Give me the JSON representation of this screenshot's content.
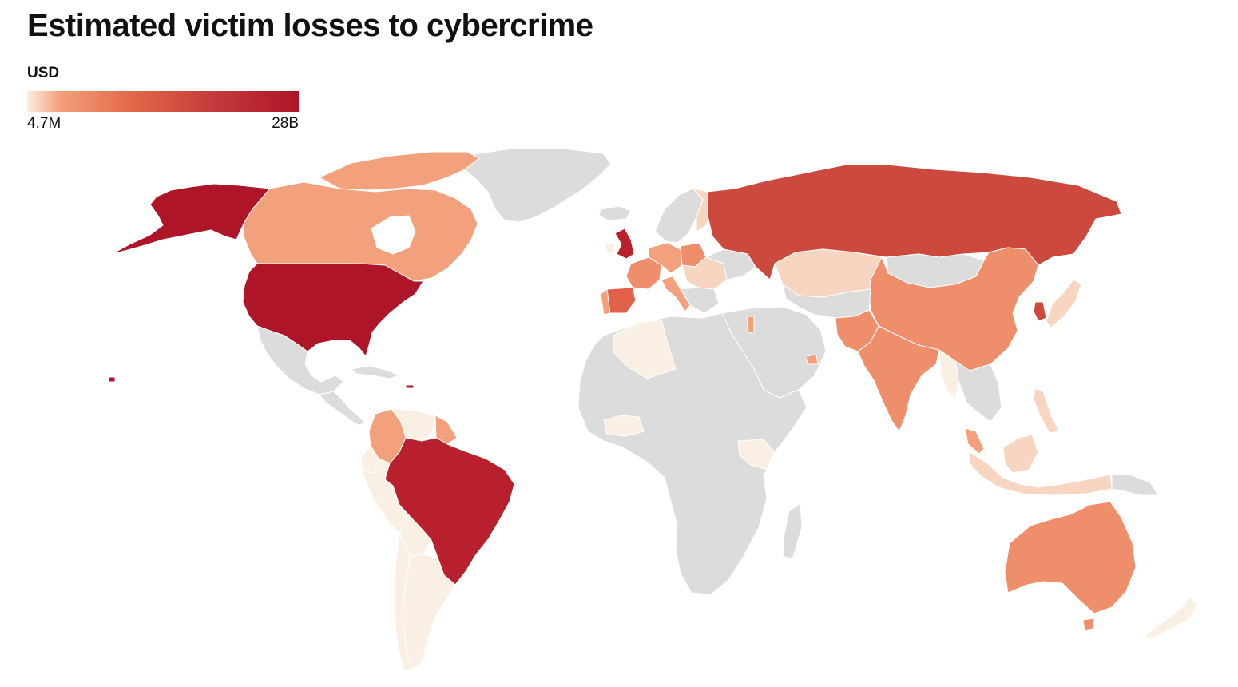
{
  "title": "Estimated victim losses to cybercrime",
  "legend": {
    "unit": "USD",
    "min_label": "4.7M",
    "max_label": "28B"
  },
  "colors": {
    "no_data": "#dcdcdc",
    "level_1": "#faefe3",
    "level_2": "#f8d5c0",
    "level_3": "#f3a07c",
    "level_4": "#ee8e6a",
    "level_5": "#e06148",
    "level_6": "#cc4a3d",
    "level_7": "#b8202e",
    "level_8": "#ae1528"
  }
}
